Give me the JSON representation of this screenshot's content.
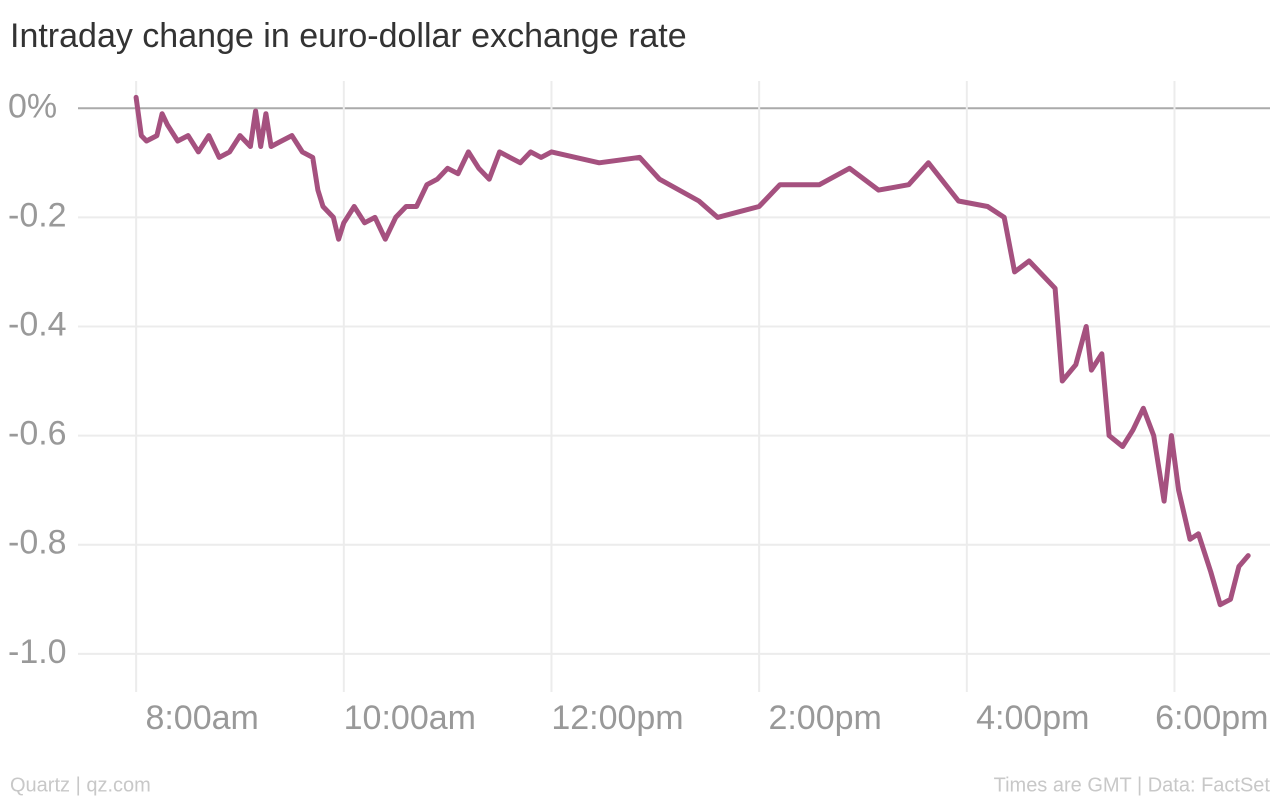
{
  "chart_data": {
    "type": "line",
    "title": "Intraday change in euro-dollar exchange rate",
    "source": "Quartz | qz.com",
    "note": "Times are GMT | Data: FactSet",
    "color": "#a5517f",
    "grid": true,
    "x": [
      8.0,
      8.05,
      8.1,
      8.2,
      8.25,
      8.3,
      8.4,
      8.5,
      8.6,
      8.7,
      8.8,
      8.9,
      9.0,
      9.1,
      9.15,
      9.2,
      9.25,
      9.3,
      9.4,
      9.5,
      9.6,
      9.7,
      9.75,
      9.8,
      9.9,
      9.95,
      10.0,
      10.1,
      10.2,
      10.3,
      10.4,
      10.5,
      10.6,
      10.7,
      10.8,
      10.9,
      11.0,
      11.1,
      11.2,
      11.3,
      11.4,
      11.5,
      11.6,
      11.7,
      11.8,
      11.9,
      12.0,
      12.46,
      12.85,
      13.04,
      13.42,
      13.6,
      13.8,
      14.0,
      14.2,
      14.58,
      14.87,
      15.15,
      15.44,
      15.63,
      15.92,
      16.2,
      16.36,
      16.46,
      16.6,
      16.75,
      16.85,
      16.92,
      17.05,
      17.15,
      17.2,
      17.3,
      17.37,
      17.5,
      17.6,
      17.7,
      17.8,
      17.9,
      17.97,
      18.04,
      18.15,
      18.23,
      18.35,
      18.44,
      18.54,
      18.62,
      18.71
    ],
    "values": [
      0.02,
      -0.05,
      -0.06,
      -0.05,
      -0.01,
      -0.03,
      -0.06,
      -0.05,
      -0.08,
      -0.05,
      -0.09,
      -0.08,
      -0.05,
      -0.07,
      -0.005,
      -0.07,
      -0.01,
      -0.07,
      -0.06,
      -0.05,
      -0.08,
      -0.09,
      -0.15,
      -0.18,
      -0.2,
      -0.24,
      -0.21,
      -0.18,
      -0.21,
      -0.2,
      -0.24,
      -0.2,
      -0.18,
      -0.18,
      -0.14,
      -0.13,
      -0.11,
      -0.12,
      -0.08,
      -0.11,
      -0.13,
      -0.08,
      -0.09,
      -0.1,
      -0.08,
      -0.09,
      -0.08,
      -0.1,
      -0.09,
      -0.13,
      -0.17,
      -0.2,
      -0.19,
      -0.18,
      -0.14,
      -0.14,
      -0.11,
      -0.15,
      -0.14,
      -0.1,
      -0.17,
      -0.18,
      -0.2,
      -0.3,
      -0.28,
      -0.31,
      -0.33,
      -0.5,
      -0.47,
      -0.4,
      -0.48,
      -0.45,
      -0.6,
      -0.62,
      -0.59,
      -0.55,
      -0.6,
      -0.72,
      -0.6,
      -0.7,
      -0.79,
      -0.78,
      -0.85,
      -0.91,
      -0.9,
      -0.84,
      -0.82
    ],
    "xlim": [
      7.44,
      18.92
    ],
    "xticks": [
      {
        "value": 8,
        "label": "8:00am"
      },
      {
        "value": 10,
        "label": "10:00am"
      },
      {
        "value": 12,
        "label": "12:00pm"
      },
      {
        "value": 14,
        "label": "2:00pm"
      },
      {
        "value": 16,
        "label": "4:00pm"
      },
      {
        "value": 18,
        "label": "6:00pm"
      }
    ],
    "ylim": [
      -1.07,
      0.05
    ],
    "yticks": [
      {
        "value": 0,
        "label": "0%"
      },
      -0.2,
      -0.4,
      -0.6,
      -0.8,
      {
        "value": -1,
        "label": "-1.0"
      }
    ]
  }
}
